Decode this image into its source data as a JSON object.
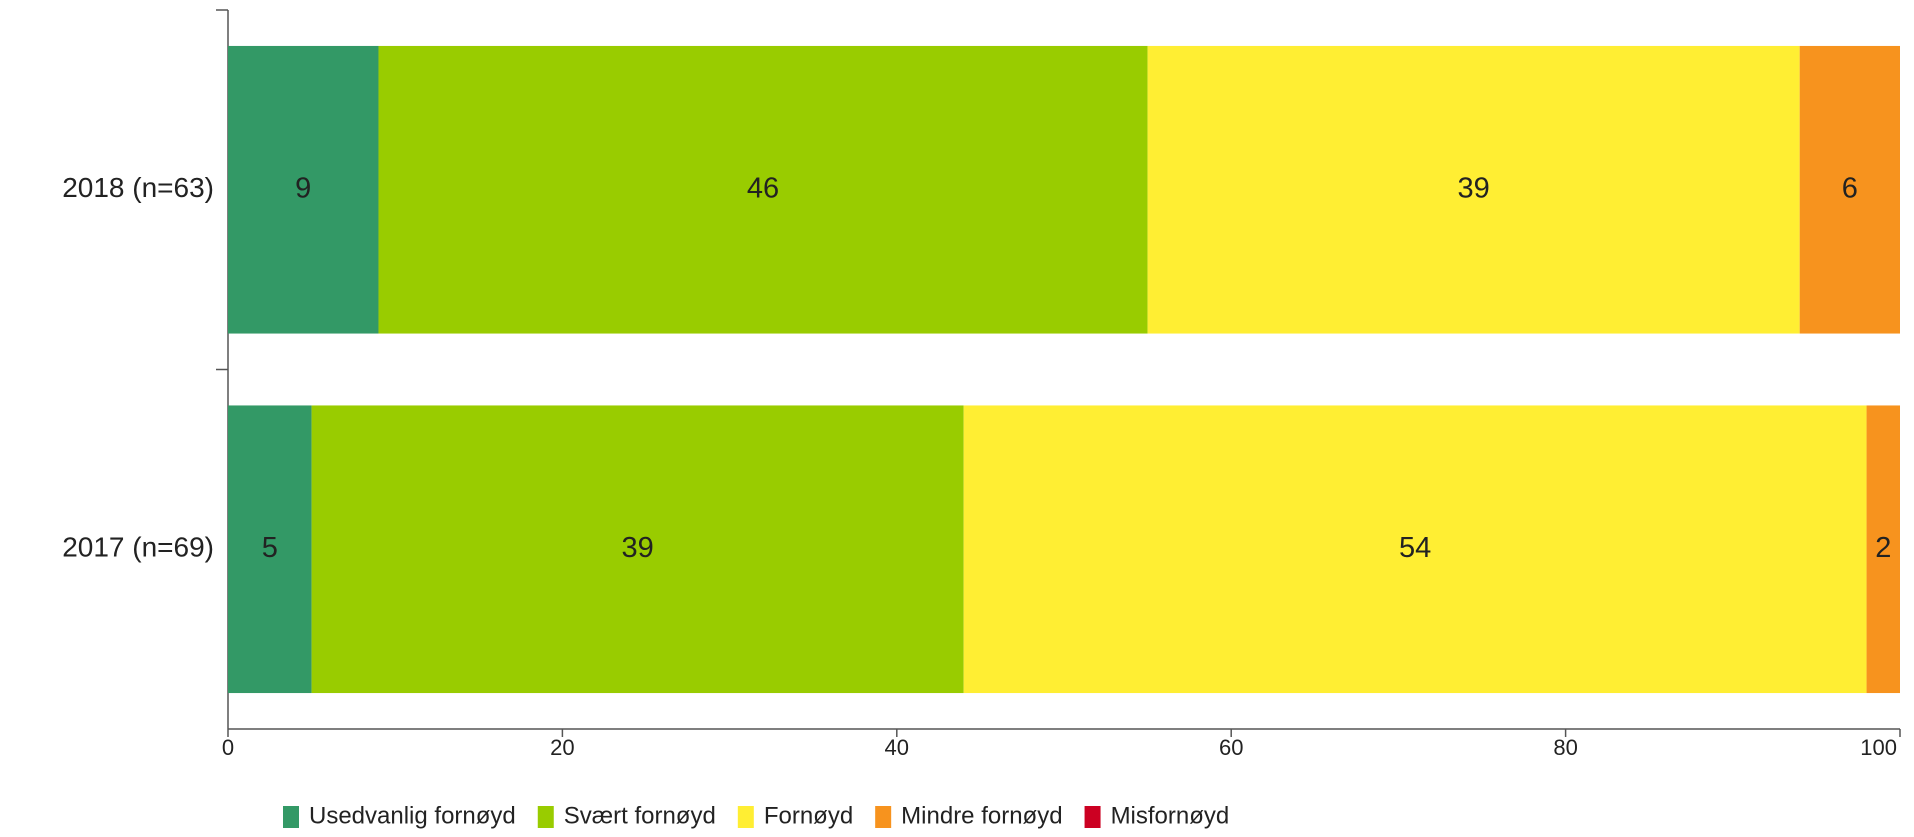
{
  "chart_data": {
    "type": "stacked_barh",
    "categories": [
      "2018 (n=63)",
      "2017 (n=69)"
    ],
    "series": [
      {
        "name": "Usedvanlig fornøyd",
        "color": "#339966",
        "values": [
          9,
          5
        ]
      },
      {
        "name": "Svært fornøyd",
        "color": "#99cc00",
        "values": [
          46,
          39
        ]
      },
      {
        "name": "Fornøyd",
        "color": "#ffee33",
        "values": [
          39,
          54
        ]
      },
      {
        "name": "Mindre fornøyd",
        "color": "#f7931e",
        "values": [
          6,
          2
        ]
      },
      {
        "name": "Misfornøyd",
        "color": "#cc0022",
        "values": [
          0,
          0
        ]
      }
    ],
    "xlim": [
      0,
      100
    ],
    "xticks": [
      0,
      20,
      40,
      60,
      80,
      100
    ],
    "legend": "bottom"
  }
}
